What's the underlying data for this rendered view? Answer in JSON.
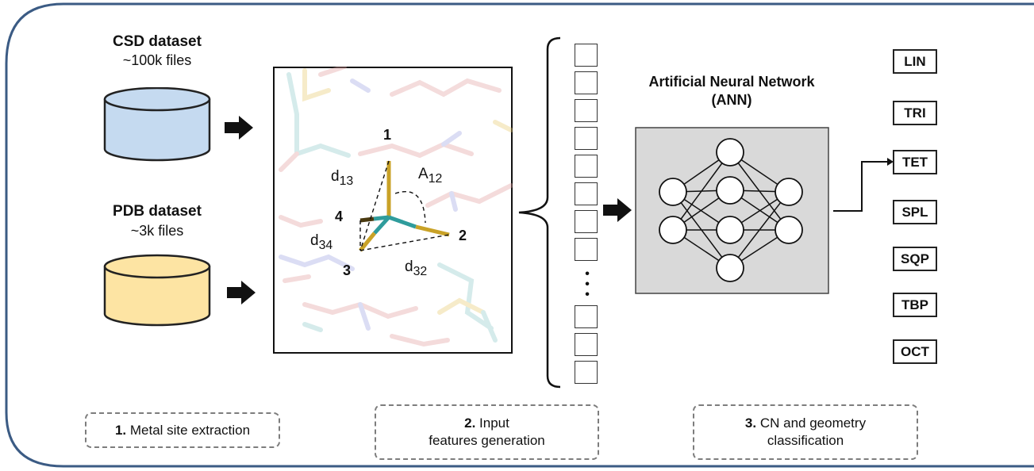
{
  "datasets": [
    {
      "title": "CSD dataset",
      "subtitle": "~100k files",
      "color": "#c5daf0"
    },
    {
      "title": "PDB dataset",
      "subtitle": "~3k files",
      "color": "#fde4a3"
    }
  ],
  "molecule": {
    "atom_labels": [
      "1",
      "2",
      "3",
      "4"
    ],
    "distance_labels": [
      {
        "base": "d",
        "sub": "13"
      },
      {
        "base": "d",
        "sub": "34"
      },
      {
        "base": "d",
        "sub": "32"
      }
    ],
    "angle_label": {
      "base": "A",
      "sub": "12"
    }
  },
  "feature_vector": {
    "ellipsis": "•\n•\n•"
  },
  "ann": {
    "title_line1": "Artificial Neural Network",
    "title_line2": "(ANN)"
  },
  "classes": [
    "LIN",
    "TRI",
    "TET",
    "SPL",
    "SQP",
    "TBP",
    "OCT"
  ],
  "steps": [
    {
      "number": "1.",
      "text": "Metal site extraction"
    },
    {
      "number": "2.",
      "text_line1": "Input",
      "text_line2": "features generation"
    },
    {
      "number": "3.",
      "text_line1": "CN and geometry",
      "text_line2": "classification"
    }
  ],
  "colors": {
    "frame": "#3b5b84",
    "ann_background": "#d9d9d9",
    "metal": "#3aa6a6",
    "ligand": "#c9a227"
  }
}
